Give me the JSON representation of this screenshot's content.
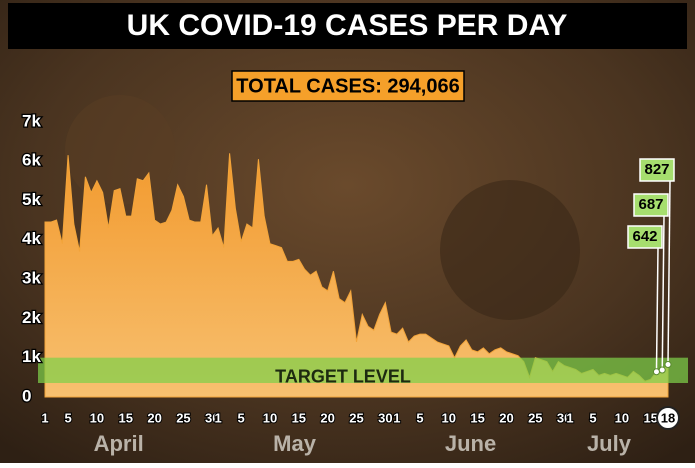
{
  "chart_data": {
    "type": "area",
    "title": "UK COVID-19 CASES PER DAY",
    "annotation": "TOTAL CASES: 294,066",
    "target_label": "TARGET LEVEL",
    "target_level": 1000,
    "months": [
      "April",
      "May",
      "June",
      "July"
    ],
    "categories": [
      "1",
      null,
      null,
      null,
      "5",
      null,
      null,
      null,
      null,
      "10",
      null,
      null,
      null,
      null,
      "15",
      null,
      null,
      null,
      null,
      "20",
      null,
      null,
      null,
      null,
      "25",
      null,
      null,
      null,
      null,
      "30",
      "1",
      null,
      null,
      null,
      "5",
      null,
      null,
      null,
      null,
      "10",
      null,
      null,
      null,
      null,
      "15",
      null,
      null,
      null,
      null,
      "20",
      null,
      null,
      null,
      null,
      "25",
      null,
      null,
      null,
      null,
      "30",
      null,
      "1",
      null,
      null,
      null,
      "5",
      null,
      null,
      null,
      null,
      "10",
      null,
      null,
      null,
      null,
      "15",
      null,
      null,
      null,
      null,
      "20",
      null,
      null,
      null,
      null,
      "25",
      null,
      null,
      null,
      null,
      "30",
      "1",
      null,
      null,
      null,
      "5",
      null,
      null,
      null,
      null,
      "10",
      null,
      null,
      null,
      null,
      "15",
      null,
      null,
      "18"
    ],
    "series": [
      {
        "color": "#f2a43a",
        "values": [
          4450,
          4450,
          4500,
          3900,
          6150,
          4400,
          3700,
          5600,
          5200,
          5500,
          5200,
          4300,
          5250,
          5300,
          4600,
          4600,
          5550,
          5500,
          5700,
          4500,
          4400,
          4450,
          4750,
          5400,
          5100,
          4500,
          4450,
          4450,
          5400,
          4100,
          4300,
          3800,
          6200,
          4800,
          3950,
          4400,
          4300,
          6050,
          4600,
          3900,
          3850,
          3800,
          3450,
          3450,
          3500,
          3250,
          3100,
          3200,
          2800,
          2700,
          3200,
          2500,
          2400,
          2700,
          1400,
          2100,
          1800,
          1700,
          2100,
          2400,
          1650,
          1600,
          1750,
          1400,
          1550,
          1600,
          1600,
          1500,
          1400,
          1350,
          1300,
          1000,
          1300,
          1450,
          1200,
          1150,
          1250,
          1100,
          1200,
          1250,
          1150,
          1100,
          1050,
          900,
          500,
          1000,
          950,
          900,
          650,
          900,
          800,
          750,
          700,
          600,
          650,
          700,
          550,
          600,
          550,
          600,
          550,
          500,
          650,
          550,
          400,
          450,
          642,
          687,
          827
        ]
      }
    ],
    "ylim": [
      0,
      7300
    ],
    "yticks": [
      0,
      {
        "value": 1000,
        "label": "1k"
      },
      {
        "value": 2000,
        "label": "2k"
      },
      {
        "value": 3000,
        "label": "3k"
      },
      {
        "value": 4000,
        "label": "4k"
      },
      {
        "value": 5000,
        "label": "5k"
      },
      {
        "value": 6000,
        "label": "6k"
      },
      {
        "value": 7000,
        "label": "7k"
      }
    ]
  }
}
